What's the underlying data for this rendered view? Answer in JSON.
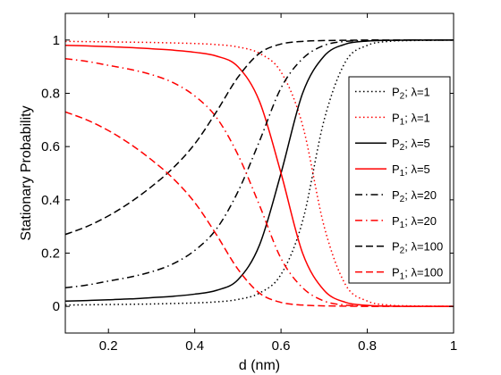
{
  "chart_data": {
    "type": "line",
    "xlabel": "d (nm)",
    "ylabel": "Stationary Probability",
    "xlim": [
      0.1,
      1.0
    ],
    "ylim": [
      -0.1,
      1.1
    ],
    "xticks": [
      0.2,
      0.4,
      0.6,
      0.8,
      1
    ],
    "xtick_labels": [
      "0.2",
      "0.4",
      "0.6",
      "0.8",
      "1"
    ],
    "yticks": [
      0,
      0.2,
      0.4,
      0.6,
      0.8,
      1
    ],
    "ytick_labels": [
      "0",
      "0.2",
      "0.4",
      "0.6",
      "0.8",
      "1"
    ],
    "grid": false,
    "legend_position": "right",
    "x": [
      0.1,
      0.15,
      0.2,
      0.25,
      0.3,
      0.35,
      0.4,
      0.45,
      0.5,
      0.55,
      0.6,
      0.65,
      0.7,
      0.75,
      0.8,
      0.85,
      0.9,
      0.95,
      1.0
    ],
    "series": [
      {
        "name": "P2: λ=1",
        "sub_name": {
          "base": "P",
          "sub": "2",
          "rest": "; λ=1"
        },
        "color": "#000000",
        "dash": "dotted",
        "values": [
          0.005,
          0.006,
          0.007,
          0.008,
          0.009,
          0.011,
          0.013,
          0.017,
          0.026,
          0.05,
          0.12,
          0.32,
          0.7,
          0.92,
          0.98,
          0.995,
          0.998,
          0.999,
          1.0
        ]
      },
      {
        "name": "P1: λ=1",
        "sub_name": {
          "base": "P",
          "sub": "1",
          "rest": "; λ=1"
        },
        "color": "#ff0000",
        "dash": "dotted",
        "values": [
          0.995,
          0.994,
          0.993,
          0.992,
          0.991,
          0.989,
          0.987,
          0.983,
          0.974,
          0.95,
          0.88,
          0.68,
          0.3,
          0.08,
          0.02,
          0.005,
          0.002,
          0.001,
          0.0
        ]
      },
      {
        "name": "P2: λ=5",
        "sub_name": {
          "base": "P",
          "sub": "2",
          "rest": "; λ=5"
        },
        "color": "#000000",
        "dash": "solid",
        "values": [
          0.02,
          0.022,
          0.025,
          0.028,
          0.033,
          0.038,
          0.046,
          0.06,
          0.1,
          0.23,
          0.5,
          0.8,
          0.94,
          0.985,
          0.996,
          0.999,
          1.0,
          1.0,
          1.0
        ]
      },
      {
        "name": "P1: λ=5",
        "sub_name": {
          "base": "P",
          "sub": "1",
          "rest": "; λ=5"
        },
        "color": "#ff0000",
        "dash": "solid",
        "values": [
          0.98,
          0.978,
          0.975,
          0.972,
          0.967,
          0.962,
          0.954,
          0.94,
          0.9,
          0.77,
          0.5,
          0.2,
          0.06,
          0.015,
          0.004,
          0.001,
          0.0,
          0.0,
          0.0
        ]
      },
      {
        "name": "P2: λ=20",
        "sub_name": {
          "base": "P",
          "sub": "2",
          "rest": "; λ=20"
        },
        "color": "#000000",
        "dash": "dashdot",
        "values": [
          0.07,
          0.08,
          0.095,
          0.11,
          0.13,
          0.16,
          0.21,
          0.29,
          0.43,
          0.62,
          0.82,
          0.93,
          0.98,
          0.995,
          0.998,
          0.999,
          1.0,
          1.0,
          1.0
        ]
      },
      {
        "name": "P1: λ=20",
        "sub_name": {
          "base": "P",
          "sub": "1",
          "rest": "; λ=20"
        },
        "color": "#ff0000",
        "dash": "dashdot",
        "values": [
          0.93,
          0.92,
          0.905,
          0.89,
          0.87,
          0.84,
          0.79,
          0.71,
          0.57,
          0.38,
          0.18,
          0.07,
          0.02,
          0.005,
          0.002,
          0.001,
          0.0,
          0.0,
          0.0
        ]
      },
      {
        "name": "P2: λ=100",
        "sub_name": {
          "base": "P",
          "sub": "2",
          "rest": "; λ=100"
        },
        "color": "#000000",
        "dash": "dashed",
        "values": [
          0.27,
          0.3,
          0.34,
          0.39,
          0.45,
          0.52,
          0.61,
          0.73,
          0.86,
          0.95,
          0.985,
          0.995,
          0.998,
          0.999,
          1.0,
          1.0,
          1.0,
          1.0,
          1.0
        ]
      },
      {
        "name": "P1: λ=100",
        "sub_name": {
          "base": "P",
          "sub": "1",
          "rest": "; λ=100"
        },
        "color": "#ff0000",
        "dash": "dashed",
        "values": [
          0.73,
          0.7,
          0.66,
          0.61,
          0.55,
          0.48,
          0.39,
          0.27,
          0.14,
          0.05,
          0.015,
          0.005,
          0.002,
          0.001,
          0.0,
          0.0,
          0.0,
          0.0,
          0.0
        ]
      }
    ]
  }
}
